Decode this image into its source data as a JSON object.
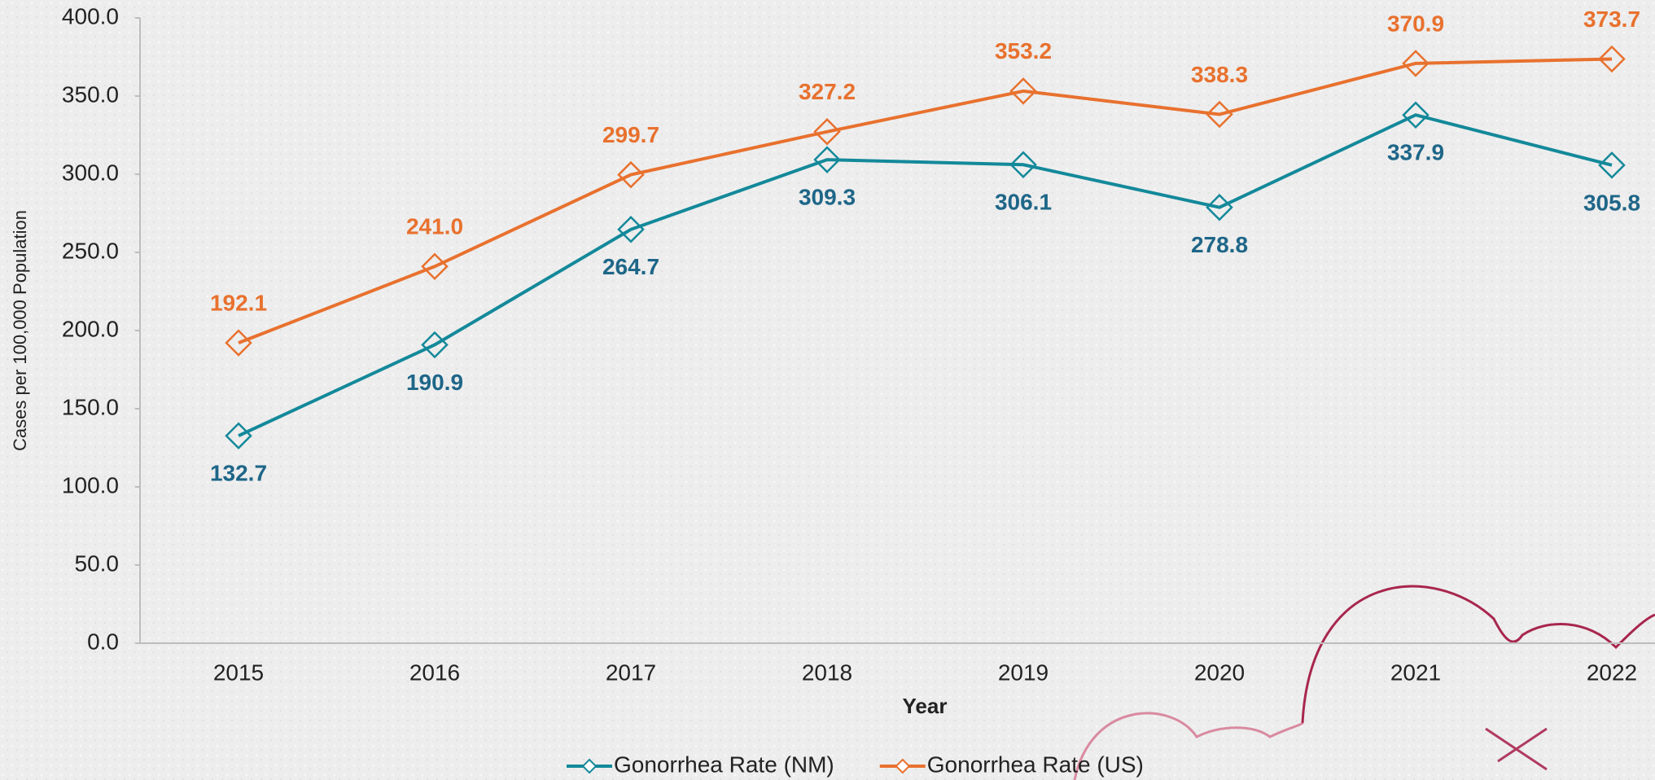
{
  "chart_data": {
    "type": "line",
    "x_label": "Year",
    "y_label": "Cases per 100,000 Population",
    "categories": [
      "2015",
      "2016",
      "2017",
      "2018",
      "2019",
      "2020",
      "2021",
      "2022"
    ],
    "series": [
      {
        "name": "Gonorrhea Rate (NM)",
        "color": "#13899a",
        "label_color": "#1e6688",
        "values": [
          132.7,
          190.9,
          264.7,
          309.3,
          306.1,
          278.8,
          337.9,
          305.8
        ],
        "value_labels": [
          "132.7",
          "190.9",
          "264.7",
          "309.3",
          "306.1",
          "278.8",
          "337.9",
          "305.8"
        ]
      },
      {
        "name": "Gonorrhea Rate (US)",
        "color": "#e8712e",
        "label_color": "#e8712e",
        "values": [
          192.1,
          241.0,
          299.7,
          327.2,
          353.2,
          338.3,
          370.9,
          373.7
        ],
        "value_labels": [
          "192.1",
          "241.0",
          "299.7",
          "327.2",
          "353.2",
          "338.3",
          "370.9",
          "373.7"
        ]
      }
    ],
    "ylim": [
      0,
      400
    ],
    "yticks": [
      {
        "value": 0,
        "label": "0.0"
      },
      {
        "value": 50,
        "label": "50.0"
      },
      {
        "value": 100,
        "label": "100.0"
      },
      {
        "value": 150,
        "label": "150.0"
      },
      {
        "value": 200,
        "label": "200.0"
      },
      {
        "value": 250,
        "label": "250.0"
      },
      {
        "value": 300,
        "label": "300.0"
      },
      {
        "value": 350,
        "label": "350.0"
      },
      {
        "value": 400,
        "label": "400.0"
      }
    ],
    "grid": false,
    "legend": "bottom"
  }
}
